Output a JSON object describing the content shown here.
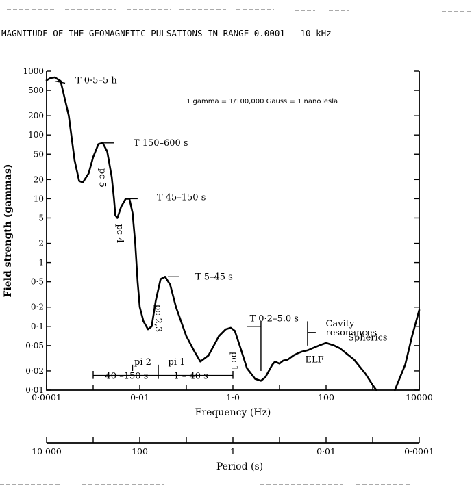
{
  "chart_data": {
    "type": "line",
    "title": "MAGNITUDE OF THE GEOMAGNETIC PULSATIONS IN RANGE 0.0001 - 10 kHz",
    "xlabel": "Frequency (Hz)",
    "ylabel": "Field strength (gammas)",
    "x_scale": "log",
    "y_scale": "log",
    "xlim": [
      0.0001,
      10000
    ],
    "ylim": [
      0.01,
      1000
    ],
    "x_tick_labels": [
      {
        "value": 0.0001,
        "label": "0·0001"
      },
      {
        "value": 0.01,
        "label": "0·01"
      },
      {
        "value": 1,
        "label": "1·0"
      },
      {
        "value": 100,
        "label": "100"
      },
      {
        "value": 10000,
        "label": "10000"
      }
    ],
    "y_tick_labels": [
      {
        "value": 1000,
        "label": "1000"
      },
      {
        "value": 500,
        "label": "500"
      },
      {
        "value": 200,
        "label": "200"
      },
      {
        "value": 100,
        "label": "100"
      },
      {
        "value": 50,
        "label": "50"
      },
      {
        "value": 20,
        "label": "20"
      },
      {
        "value": 10,
        "label": "10"
      },
      {
        "value": 5,
        "label": "5"
      },
      {
        "value": 2,
        "label": "2"
      },
      {
        "value": 1,
        "label": "1"
      },
      {
        "value": 0.5,
        "label": "0·5"
      },
      {
        "value": 0.2,
        "label": "0·2"
      },
      {
        "value": 0.1,
        "label": "0·1"
      },
      {
        "value": 0.05,
        "label": "0·05"
      },
      {
        "value": 0.02,
        "label": "0·02"
      },
      {
        "value": 0.01,
        "label": "0·01"
      }
    ],
    "period_axis": {
      "label": "Period (s)",
      "tick_labels": [
        {
          "value": 10000,
          "label": "10 000"
        },
        {
          "value": 100,
          "label": "100"
        },
        {
          "value": 1,
          "label": "1"
        },
        {
          "value": 0.01,
          "label": "0·01"
        },
        {
          "value": 0.0001,
          "label": "0·0001"
        }
      ]
    },
    "unit_note": "1 gamma = 1/100,000 Gauss = 1 nanoTesla",
    "series": [
      {
        "points": [
          [
            0.0001,
            720
          ],
          [
            0.00012,
            780
          ],
          [
            0.00015,
            800
          ],
          [
            0.0002,
            700
          ],
          [
            0.0003,
            200
          ],
          [
            0.0004,
            40
          ],
          [
            0.0005,
            19
          ],
          [
            0.0006,
            18
          ],
          [
            0.0008,
            25
          ],
          [
            0.001,
            45
          ],
          [
            0.0013,
            72
          ],
          [
            0.0016,
            75
          ],
          [
            0.002,
            55
          ],
          [
            0.0025,
            22
          ],
          [
            0.0028,
            10
          ],
          [
            0.003,
            5.5
          ],
          [
            0.0033,
            5
          ],
          [
            0.004,
            7.5
          ],
          [
            0.005,
            10
          ],
          [
            0.006,
            10
          ],
          [
            0.007,
            6
          ],
          [
            0.008,
            2
          ],
          [
            0.009,
            0.5
          ],
          [
            0.01,
            0.2
          ],
          [
            0.012,
            0.12
          ],
          [
            0.015,
            0.09
          ],
          [
            0.018,
            0.1
          ],
          [
            0.022,
            0.25
          ],
          [
            0.028,
            0.55
          ],
          [
            0.035,
            0.6
          ],
          [
            0.045,
            0.45
          ],
          [
            0.06,
            0.2
          ],
          [
            0.1,
            0.07
          ],
          [
            0.15,
            0.04
          ],
          [
            0.2,
            0.028
          ],
          [
            0.3,
            0.035
          ],
          [
            0.5,
            0.07
          ],
          [
            0.7,
            0.09
          ],
          [
            0.9,
            0.095
          ],
          [
            1.1,
            0.085
          ],
          [
            1.4,
            0.05
          ],
          [
            2,
            0.022
          ],
          [
            3,
            0.015
          ],
          [
            4,
            0.014
          ],
          [
            5,
            0.016
          ],
          [
            7,
            0.025
          ],
          [
            8,
            0.028
          ],
          [
            10,
            0.026
          ],
          [
            12,
            0.029
          ],
          [
            15,
            0.03
          ],
          [
            20,
            0.035
          ],
          [
            25,
            0.038
          ],
          [
            30,
            0.04
          ],
          [
            40,
            0.042
          ],
          [
            50,
            0.045
          ],
          [
            70,
            0.05
          ],
          [
            100,
            0.055
          ],
          [
            150,
            0.05
          ],
          [
            200,
            0.045
          ],
          [
            400,
            0.03
          ],
          [
            700,
            0.018
          ],
          [
            1000,
            0.012
          ],
          [
            1200,
            0.01
          ]
        ]
      },
      {
        "points": [
          [
            3000,
            0.01
          ],
          [
            5000,
            0.025
          ],
          [
            7000,
            0.07
          ],
          [
            10000,
            0.18
          ]
        ]
      }
    ],
    "annotations": [
      {
        "text": "T 0·5–5 h",
        "x": 0.00015,
        "y": 650
      },
      {
        "text": "T 150–600 s",
        "x": 0.0016,
        "y": 75
      },
      {
        "text": "pc 5",
        "x": 0.0012,
        "y": 30
      },
      {
        "text": "T 45–150 s",
        "x": 0.006,
        "y": 10
      },
      {
        "text": "pc 4",
        "x": 0.004,
        "y": 4
      },
      {
        "text": "T 5–45 s",
        "x": 0.04,
        "y": 0.6
      },
      {
        "text": "pc 2,3",
        "x": 0.025,
        "y": 0.22
      },
      {
        "text": "pc 1",
        "x": 1,
        "y": 0.04
      },
      {
        "text": "T 0·2–5.0 s",
        "x": 2,
        "y": 0.12
      },
      {
        "text": "Cavity resonances",
        "x": 50,
        "y": 0.1
      },
      {
        "text": "Spherics",
        "x": 150,
        "y": 0.06
      },
      {
        "text": "ELF",
        "x": 50,
        "y": 0.03
      },
      {
        "text": "pi 2",
        "x": 0.01,
        "y": 0.025
      },
      {
        "text": "pi 1",
        "x": 0.05,
        "y": 0.025
      },
      {
        "text": "40 –150 s",
        "x": 0.005,
        "y": 0.015
      },
      {
        "text": "1 – 40 s",
        "x": 0.08,
        "y": 0.015
      }
    ],
    "grid": false
  }
}
